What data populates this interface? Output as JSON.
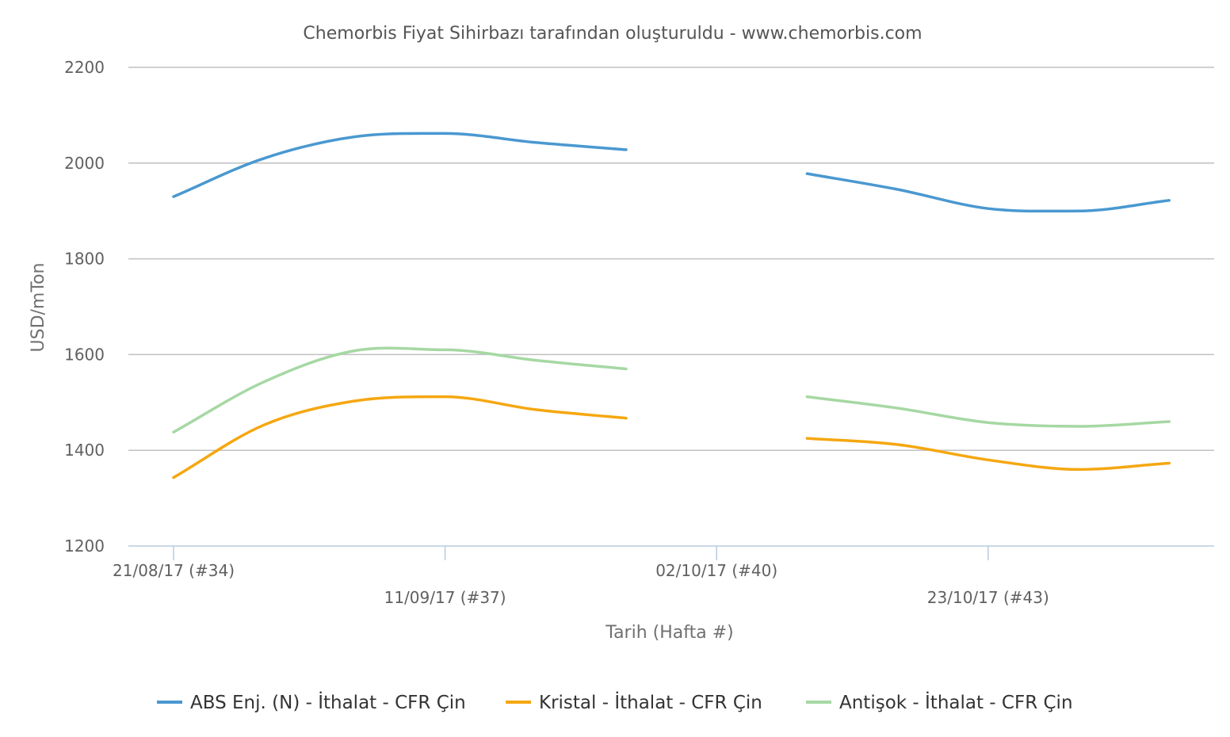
{
  "chart_data": {
    "type": "line",
    "title": "Chemorbis Fiyat Sihirbazı tarafından oluşturuldu - www.chemorbis.com",
    "xlabel": "Tarih (Hafta #)",
    "ylabel": "USD/mTon",
    "ylim": [
      1200,
      2200
    ],
    "yticks": [
      1200,
      1400,
      1600,
      1800,
      2000,
      2200
    ],
    "xticks": [
      {
        "week": 34,
        "label": "21/08/17 (#34)"
      },
      {
        "week": 37,
        "label": "11/09/17 (#37)"
      },
      {
        "week": 40,
        "label": "02/10/17 (#40)"
      },
      {
        "week": 43,
        "label": "23/10/17 (#43)"
      }
    ],
    "xlim_weeks": [
      33.5,
      45.5
    ],
    "grid": true,
    "legend_position": "bottom",
    "series": [
      {
        "name": "ABS Enj. (N) - İthalat - CFR Çin",
        "color": "#4a98d0",
        "points": [
          {
            "week": 34,
            "value": 1930
          },
          {
            "week": 35,
            "value": 2010
          },
          {
            "week": 36,
            "value": 2055
          },
          {
            "week": 37,
            "value": 2062
          },
          {
            "week": 38,
            "value": 2043
          },
          {
            "week": 39,
            "value": 2028
          },
          {
            "week": 41,
            "value": 1978
          },
          {
            "week": 42,
            "value": 1945
          },
          {
            "week": 43,
            "value": 1905
          },
          {
            "week": 44,
            "value": 1900
          },
          {
            "week": 45,
            "value": 1922
          }
        ]
      },
      {
        "name": "Kristal - İthalat - CFR Çin",
        "color": "#f5a711",
        "points": [
          {
            "week": 34,
            "value": 1343
          },
          {
            "week": 35,
            "value": 1453
          },
          {
            "week": 36,
            "value": 1503
          },
          {
            "week": 37,
            "value": 1512
          },
          {
            "week": 38,
            "value": 1485
          },
          {
            "week": 39,
            "value": 1467
          },
          {
            "week": 41,
            "value": 1425
          },
          {
            "week": 42,
            "value": 1412
          },
          {
            "week": 43,
            "value": 1380
          },
          {
            "week": 44,
            "value": 1360
          },
          {
            "week": 45,
            "value": 1373
          }
        ]
      },
      {
        "name": "Antişok - İthalat - CFR Çin",
        "color": "#a6d8a3",
        "points": [
          {
            "week": 34,
            "value": 1438
          },
          {
            "week": 35,
            "value": 1543
          },
          {
            "week": 36,
            "value": 1608
          },
          {
            "week": 37,
            "value": 1610
          },
          {
            "week": 38,
            "value": 1588
          },
          {
            "week": 39,
            "value": 1570
          },
          {
            "week": 41,
            "value": 1512
          },
          {
            "week": 42,
            "value": 1488
          },
          {
            "week": 43,
            "value": 1458
          },
          {
            "week": 44,
            "value": 1450
          },
          {
            "week": 45,
            "value": 1460
          }
        ]
      }
    ]
  }
}
